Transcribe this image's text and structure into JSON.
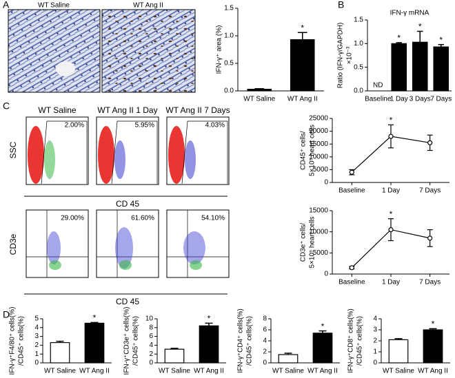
{
  "figure": {
    "panels": [
      "A",
      "B",
      "C",
      "D"
    ],
    "micrographs": [
      "WT Saline",
      "WT Ang II"
    ],
    "flow": {
      "titles": [
        "WT Saline",
        "WT Ang II 1 Day",
        "WT Ang II 7 Days"
      ],
      "row1_percents": [
        "2.00%",
        "5.95%",
        "4.03%"
      ],
      "row2_percents": [
        "29.00%",
        "61.60%",
        "54.10%"
      ],
      "row_labels": [
        "SSC",
        "CD3e"
      ],
      "x_label": "CD 45"
    }
  },
  "chart_data": [
    {
      "type": "bar",
      "categories": [
        "WT Saline",
        "WT Ang II"
      ],
      "values": [
        0.03,
        0.93
      ],
      "errors": [
        0.01,
        0.13
      ],
      "colors": [
        "#000000",
        "#000000"
      ],
      "significance": [
        null,
        "*"
      ],
      "ylabel": [
        "IFN-γ⁺ area (%)"
      ],
      "ylim": [
        0,
        1.5
      ],
      "yticks": [
        {
          "value": 0,
          "label": "0.0"
        },
        {
          "value": 0.5,
          "label": "0.5"
        },
        {
          "value": 1,
          "label": "1.0"
        },
        {
          "value": 1.5,
          "label": "1.5"
        }
      ]
    },
    {
      "type": "bar",
      "title": "IFN-γ mRNA",
      "categories": [
        "Baseline",
        "1 Day",
        "3 Days",
        "7 Days"
      ],
      "values": [
        null,
        1.0,
        1.03,
        0.93
      ],
      "value_labels": [
        "ND",
        null,
        null,
        null
      ],
      "errors": [
        null,
        0.02,
        0.23,
        0.05
      ],
      "colors": [
        "#000000",
        "#000000",
        "#000000",
        "#000000"
      ],
      "significance": [
        null,
        "*",
        "*",
        "*"
      ],
      "ylabel": [
        "Ratio (IFN-γ/GAPDH)",
        "×10⁻³"
      ],
      "ylim": [
        0,
        1.5
      ],
      "yticks": [
        {
          "value": 0,
          "label": "0.0"
        },
        {
          "value": 0.5,
          "label": "0.5"
        },
        {
          "value": 1,
          "label": "1.0"
        },
        {
          "value": 1.5,
          "label": "1.5"
        }
      ]
    },
    {
      "type": "line",
      "categories": [
        "Baseline",
        "1 Day",
        "7 Days"
      ],
      "values": [
        4000,
        18000,
        15500
      ],
      "errors": [
        1000,
        4500,
        3000
      ],
      "color": "#000000",
      "significance": [
        null,
        "*",
        null
      ],
      "ylabel": [
        "CD45⁺ cells/",
        "5×10⁵ heart cells"
      ],
      "ylim": [
        0,
        25000
      ],
      "yticks": [
        0,
        5000,
        10000,
        15000,
        20000,
        25000
      ]
    },
    {
      "type": "line",
      "categories": [
        "Baseline",
        "1 Day",
        "7 Days"
      ],
      "values": [
        1500,
        10500,
        8500
      ],
      "errors": [
        300,
        2600,
        2000
      ],
      "color": "#000000",
      "significance": [
        null,
        "*",
        null
      ],
      "ylabel": [
        "CD3e⁺ cells/",
        "5×10⁵ heart cells"
      ],
      "ylim": [
        0,
        15000
      ],
      "yticks": [
        0,
        5000,
        10000,
        15000
      ]
    },
    {
      "type": "bar",
      "categories": [
        "WT Saline",
        "WT Ang II"
      ],
      "values": [
        2.3,
        4.5
      ],
      "errors": [
        0.15,
        0.08
      ],
      "colors": [
        "#ffffff",
        "#000000"
      ],
      "significance": [
        null,
        "*"
      ],
      "ylabel": [
        "IFN-γ⁺F4/80⁺ cells(%)",
        "/CD45⁺ cells(%)"
      ],
      "ylim": [
        0,
        5
      ],
      "yticks": [
        0,
        1,
        2,
        3,
        4,
        5
      ]
    },
    {
      "type": "bar",
      "categories": [
        "WT Saline",
        "WT Ang II"
      ],
      "values": [
        3.1,
        8.4
      ],
      "errors": [
        0.2,
        0.6
      ],
      "colors": [
        "#ffffff",
        "#000000"
      ],
      "significance": [
        null,
        "*"
      ],
      "ylabel": [
        "IFN-γ⁺CD3e⁺ cells(%)",
        "/CD45⁺ cells(%)"
      ],
      "ylim": [
        0,
        10
      ],
      "yticks": [
        0,
        2,
        4,
        6,
        8,
        10
      ]
    },
    {
      "type": "bar",
      "categories": [
        "WT Saline",
        "WT Ang II"
      ],
      "values": [
        1.5,
        5.4
      ],
      "errors": [
        0.25,
        0.4
      ],
      "colors": [
        "#ffffff",
        "#000000"
      ],
      "significance": [
        null,
        "*"
      ],
      "ylabel": [
        "IFN-γ⁺CD4⁺ cells(%)",
        "/CD45⁺ cells(%)"
      ],
      "ylim": [
        0,
        8
      ],
      "yticks": [
        0,
        2,
        4,
        6,
        8
      ]
    },
    {
      "type": "bar",
      "categories": [
        "WT Saline",
        "WT Ang II"
      ],
      "values": [
        2.1,
        3.0
      ],
      "errors": [
        0.1,
        0.1
      ],
      "colors": [
        "#ffffff",
        "#000000"
      ],
      "significance": [
        null,
        "*"
      ],
      "ylabel": [
        "IFN-γ⁺CD8⁺ cells(%)",
        "/CD45⁺ cells(%)"
      ],
      "ylim": [
        0,
        4
      ],
      "yticks": [
        0,
        1,
        2,
        3,
        4
      ]
    }
  ]
}
